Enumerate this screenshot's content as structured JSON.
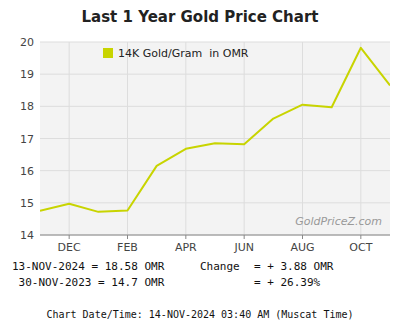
{
  "chart_data": {
    "type": "line",
    "title": "Last 1 Year Gold Price Chart",
    "categories": [
      null,
      "DEC",
      null,
      "FEB",
      null,
      "APR",
      null,
      "JUN",
      null,
      "AUG",
      null,
      "OCT",
      null
    ],
    "series": [
      {
        "name": "14K Gold/Gram  in OMR",
        "color": "#c8d400",
        "values": [
          14.75,
          14.97,
          14.72,
          14.76,
          16.15,
          16.68,
          16.85,
          16.82,
          17.62,
          18.05,
          17.97,
          19.82,
          18.65
        ]
      }
    ],
    "ylim": [
      14,
      20
    ],
    "yticks": [
      14,
      15,
      16,
      17,
      18,
      19,
      20
    ],
    "grid": true,
    "legend": "upper left",
    "annotations": [
      "GoldPriceZ.com",
      "13-NOV-2024 = 18.58 OMR",
      " 30-NOV-2023 = 14.7 OMR",
      "Change",
      "= + 3.88 OMR",
      "= + 26.39%",
      "Chart Date/Time: 14-NOV-2024 03:40 AM (Muscat Time)"
    ]
  }
}
